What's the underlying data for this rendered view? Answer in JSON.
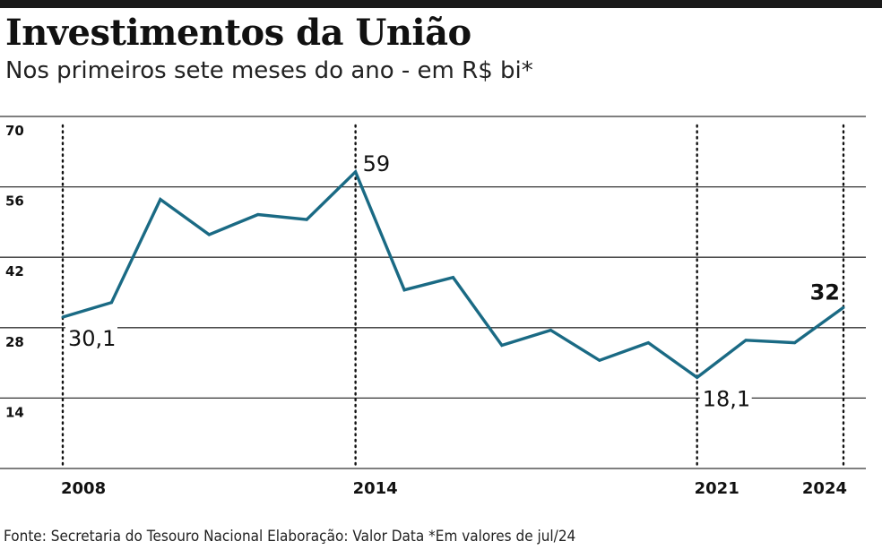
{
  "title": "Investimentos da União",
  "subtitle": "Nos primeiros sete meses do ano - em R$ bi*",
  "source": "Fonte: Secretaria do Tesouro Nacional Elaboração: Valor Data *Em valores de jul/24",
  "colors": {
    "line": "#1a6a84",
    "grid": "#333333",
    "text": "#111111"
  },
  "chart_data": {
    "type": "line",
    "title": "Investimentos da União",
    "subtitle": "Nos primeiros sete meses do ano - em R$ bi*",
    "x": [
      2008,
      2009,
      2010,
      2011,
      2012,
      2013,
      2014,
      2015,
      2016,
      2017,
      2018,
      2019,
      2020,
      2021,
      2022,
      2023,
      2024
    ],
    "series": [
      {
        "values": [
          30.1,
          33,
          53.5,
          46.5,
          50.5,
          49.5,
          59,
          35.5,
          38,
          24.5,
          27.5,
          21.5,
          25,
          18.1,
          25.5,
          25,
          32
        ]
      }
    ],
    "xlim": [
      2008,
      2024
    ],
    "ylim": [
      0,
      70
    ],
    "y_ticks": [
      "14",
      "28",
      "42",
      "56",
      "70"
    ],
    "x_tick_labels": [
      "2008",
      "2014",
      "2021",
      "2024"
    ],
    "highlight_years": [
      2008,
      2014,
      2021,
      2024
    ],
    "annotations": [
      {
        "x": 2008,
        "label": "30,1",
        "position": "below-right",
        "bold": false
      },
      {
        "x": 2014,
        "label": "59",
        "position": "above-right",
        "bold": false
      },
      {
        "x": 2021,
        "label": "18,1",
        "position": "below-right",
        "bold": false
      },
      {
        "x": 2024,
        "label": "32",
        "position": "above-left",
        "bold": true
      }
    ],
    "grid": true,
    "xlabel": "",
    "ylabel": ""
  }
}
